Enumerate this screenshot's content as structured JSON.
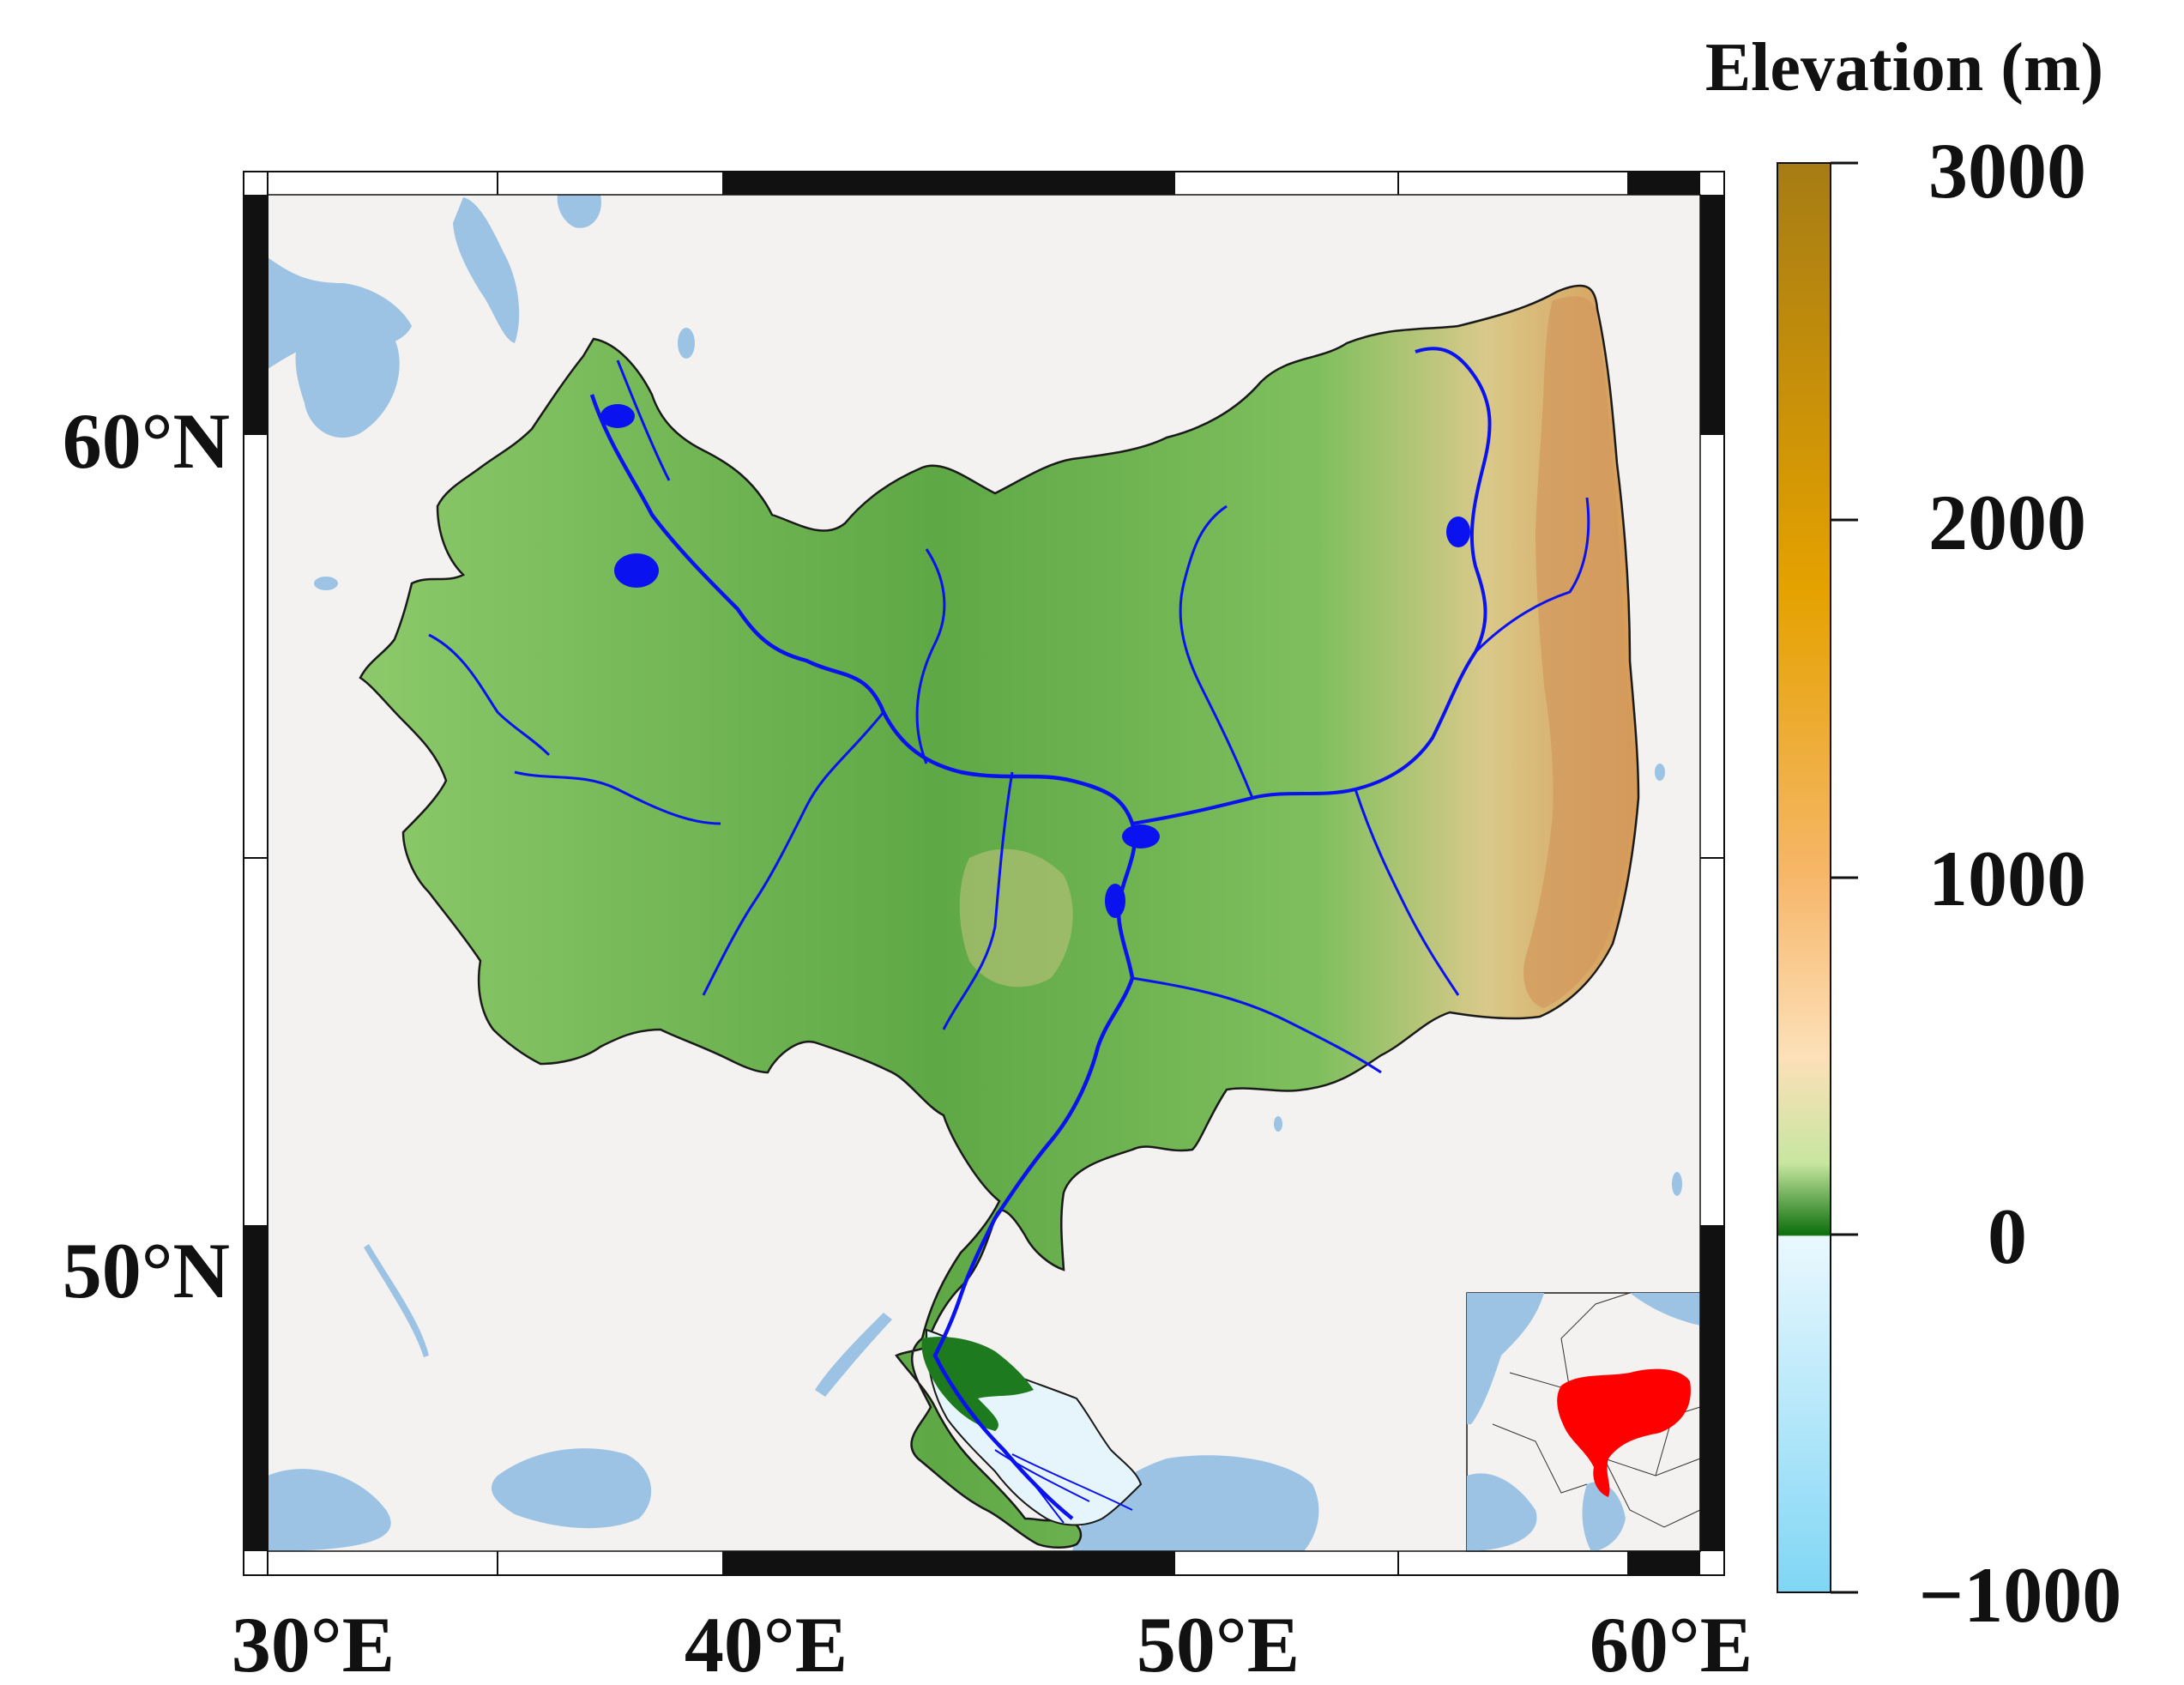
{
  "figure": {
    "colorbar_title": "Elevation (m)",
    "colorbar_ticks": [
      "3000",
      "2000",
      "1000",
      "0",
      "−1000"
    ],
    "x_ticks": [
      "30°E",
      "40°E",
      "50°E",
      "60°E"
    ],
    "y_ticks": [
      "60°N",
      "50°N"
    ]
  },
  "map": {
    "projection": "Mercator",
    "lon_range": [
      29.5,
      62
    ],
    "lat_range": [
      44.5,
      63
    ],
    "features": [
      "ocean-lakes",
      "basin-elevation",
      "rivers",
      "basin-outline",
      "locator-inset"
    ]
  },
  "colorbar": {
    "range": [
      -1000,
      3000
    ],
    "stops": [
      {
        "value": -1000,
        "color": "#7fd6f5"
      },
      {
        "value": -1,
        "color": "#eaf8fe"
      },
      {
        "value": 0,
        "color": "#0b6e0b"
      },
      {
        "value": 200,
        "color": "#c7e6a0"
      },
      {
        "value": 500,
        "color": "#fde0b8"
      },
      {
        "value": 1000,
        "color": "#f6b76a"
      },
      {
        "value": 1800,
        "color": "#e5a200"
      },
      {
        "value": 3000,
        "color": "#a67c14"
      }
    ]
  },
  "colors": {
    "land": "#f3f2f0",
    "water": "#9cc3e4",
    "river": "#0b12f0",
    "inset_highlight": "#ff0000"
  }
}
